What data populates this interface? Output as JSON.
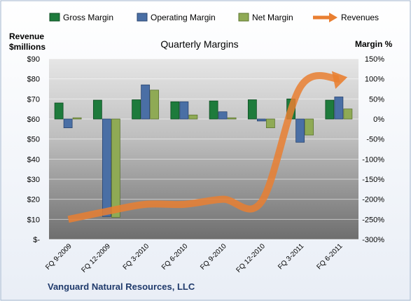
{
  "chart_data": {
    "type": "bar",
    "title": "Quarterly Margins",
    "company": "Vanguard Natural Resources, LLC",
    "left_axis_label_line1": "Revenue",
    "left_axis_label_line2": "$millions",
    "right_axis_label": "Margin %",
    "categories": [
      "FQ 9-2009",
      "FQ 12-2009",
      "FQ 3-2010",
      "FQ 6-2010",
      "FQ 9-2010",
      "FQ 12-2010",
      "FQ 3-2011",
      "FQ 6-2011"
    ],
    "left_axis": {
      "min": 0,
      "max": 90,
      "step": 10,
      "tick_labels": [
        "$-",
        "$10",
        "$20",
        "$30",
        "$40",
        "$50",
        "$60",
        "$70",
        "$80",
        "$90"
      ]
    },
    "right_axis": {
      "min": -300,
      "max": 150,
      "step": 50,
      "tick_labels": [
        "-300%",
        "-250%",
        "-200%",
        "-150%",
        "-100%",
        "-50%",
        "0%",
        "50%",
        "100%",
        "150%"
      ]
    },
    "series": [
      {
        "name": "Gross Margin",
        "axis": "right",
        "color": "#1e7b3c",
        "values": [
          40,
          47,
          48,
          43,
          45,
          48,
          50,
          47
        ]
      },
      {
        "name": "Operating Margin",
        "axis": "right",
        "color": "#4a6fa5",
        "values": [
          -22,
          -243,
          85,
          43,
          18,
          -5,
          -58,
          55
        ]
      },
      {
        "name": "Net Margin",
        "axis": "right",
        "color": "#8faa55",
        "values": [
          3,
          -245,
          72,
          10,
          3,
          -22,
          -40,
          25
        ]
      },
      {
        "name": "Revenues",
        "axis": "left",
        "type": "line",
        "color": "#e97f31",
        "values": [
          10,
          14,
          17.5,
          17.5,
          20,
          19,
          76,
          80
        ]
      }
    ],
    "grid": true,
    "legend_position": "top"
  }
}
